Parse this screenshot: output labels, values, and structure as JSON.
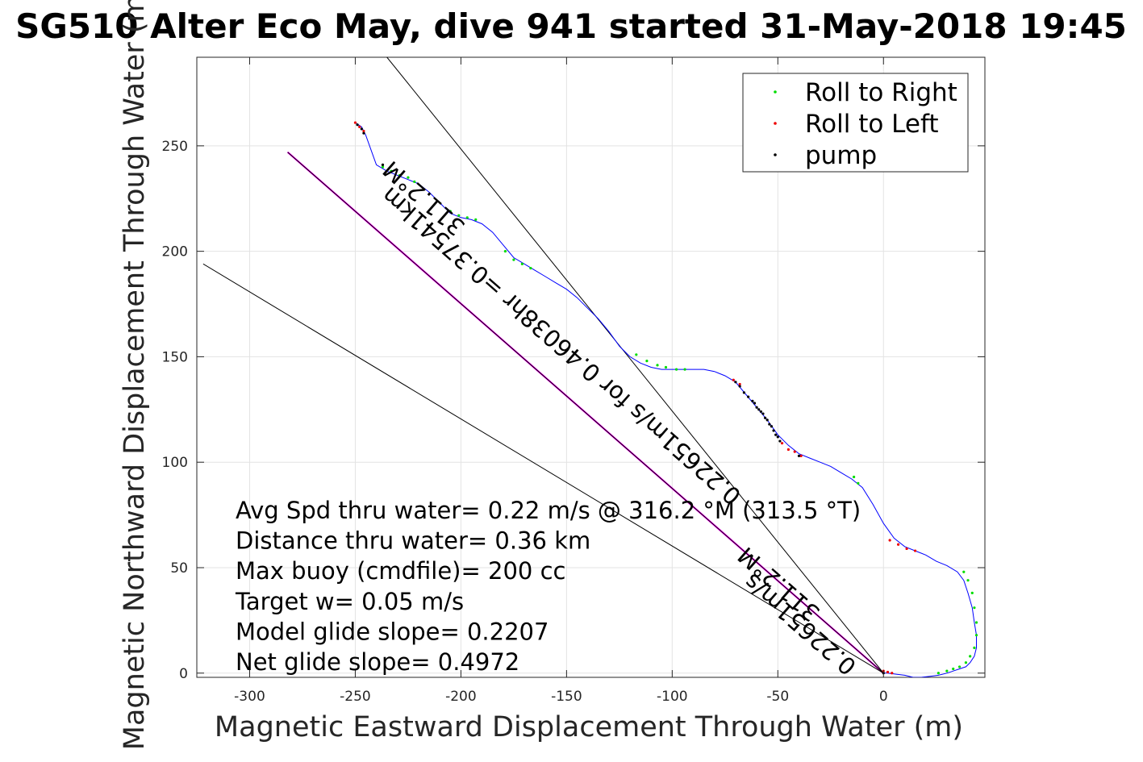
{
  "chart_data": {
    "type": "line",
    "title": "SG510 Alter Eco May, dive 941 started 31-May-2018 19:45",
    "xlabel": "Magnetic Eastward Displacement Through Water (m)",
    "ylabel": "Magnetic Northward Displacement Through Water (m)",
    "xlim": [
      -325,
      48
    ],
    "ylim": [
      -2,
      292
    ],
    "xticks": [
      -300,
      -250,
      -200,
      -150,
      -100,
      -50,
      0
    ],
    "yticks": [
      0,
      50,
      100,
      150,
      200,
      250
    ],
    "grid": true,
    "legend_position": "top-right",
    "legend": [
      {
        "label": "Roll to Right",
        "color": "#00dd00",
        "marker": "dot"
      },
      {
        "label": "Roll to Left",
        "color": "#ee0000",
        "marker": "dot"
      },
      {
        "label": "pump",
        "color": "#000000",
        "marker": "dot"
      }
    ],
    "series": [
      {
        "kind": "glider-track",
        "color": "#0000ff",
        "x": [
          -250,
          -247,
          -245,
          -240,
          -235,
          -230,
          -225,
          -220,
          -215,
          -210,
          -205,
          -200,
          -195,
          -190,
          -185,
          -180,
          -175,
          -170,
          -165,
          -160,
          -155,
          -150,
          -145,
          -140,
          -135,
          -130,
          -125,
          -120,
          -115,
          -110,
          -105,
          -100,
          -95,
          -90,
          -85,
          -80,
          -75,
          -70,
          -65,
          -60,
          -55,
          -50,
          -45,
          -40,
          -35,
          -30,
          -25,
          -20,
          -15,
          -10,
          -5,
          0,
          5,
          10,
          15,
          20,
          25,
          30,
          35,
          38,
          40,
          42,
          43,
          44,
          44,
          43,
          41,
          39,
          36,
          33,
          30,
          26,
          22,
          18,
          14,
          10,
          6,
          2,
          0
        ],
        "y": [
          261,
          259,
          255,
          241,
          238,
          236,
          234,
          232,
          228,
          223,
          218,
          216,
          215,
          213,
          209,
          203,
          197,
          194,
          191,
          188,
          185,
          182,
          178,
          173,
          168,
          162,
          155,
          150,
          147,
          145,
          144,
          144,
          144,
          144,
          144,
          143,
          141,
          138,
          132,
          126,
          120,
          113,
          108,
          104,
          102,
          100,
          98,
          95,
          92,
          88,
          80,
          71,
          64,
          60,
          58,
          56,
          53,
          51,
          48,
          44,
          38,
          31,
          24,
          18,
          12,
          8,
          5,
          3,
          2,
          1,
          0,
          -1,
          -1.5,
          -2,
          -2,
          -1,
          -0.5,
          0,
          0
        ]
      },
      {
        "kind": "heading-line",
        "color": "#ff00ff",
        "x": [
          0,
          -282
        ],
        "y": [
          0,
          247
        ]
      },
      {
        "kind": "heading-line",
        "color": "#000000",
        "x": [
          0,
          -282
        ],
        "y": [
          0,
          247
        ]
      },
      {
        "kind": "heading-line",
        "color": "#000000",
        "x": [
          0,
          -235
        ],
        "y": [
          0,
          292
        ]
      },
      {
        "kind": "heading-line",
        "color": "#000000",
        "x": [
          0,
          -322
        ],
        "y": [
          0,
          194
        ]
      }
    ],
    "markers": {
      "roll_right": {
        "color": "#00dd00",
        "x": [
          -237,
          -233,
          -229,
          -225,
          -222,
          -205,
          -201,
          -197,
          -193,
          -179,
          -175,
          -171,
          -167,
          -117,
          -112,
          -107,
          -103,
          -98,
          -94,
          -14,
          -12,
          38,
          40,
          42,
          43,
          44,
          44,
          43,
          41,
          39,
          36,
          33,
          30,
          26
        ],
        "y": [
          240,
          238,
          236,
          235,
          233,
          219,
          217,
          216,
          215,
          200,
          196,
          194,
          192,
          151,
          148,
          146,
          145,
          144,
          144,
          93,
          90,
          48,
          44,
          38,
          31,
          24,
          18,
          12,
          8,
          5,
          3,
          2,
          1,
          0
        ]
      },
      "roll_left": {
        "color": "#ee0000",
        "x": [
          -250,
          -248,
          -246,
          -71,
          -68,
          -48,
          -45,
          -42,
          -39,
          3,
          7,
          11,
          15,
          0,
          2,
          4
        ],
        "y": [
          261,
          259,
          257,
          139,
          137,
          109,
          106,
          105,
          103,
          63,
          61,
          59,
          58,
          1,
          0.5,
          0
        ]
      },
      "pump": {
        "color": "#000000",
        "x": [
          -249,
          -247,
          -246,
          -237,
          -70,
          -68,
          -66,
          -64,
          -62,
          -61,
          -60,
          -59,
          -58,
          -57,
          -56,
          -55,
          -54,
          -53,
          -52,
          -51,
          -50,
          -49,
          -40,
          0
        ],
        "y": [
          260,
          258,
          256,
          241,
          138,
          136,
          133,
          131,
          129,
          128,
          126,
          125,
          124,
          123,
          121,
          120,
          118,
          117,
          115,
          113,
          112,
          110,
          103,
          0
        ]
      }
    },
    "line_labels": [
      {
        "text": "311.2°M",
        "x": -215,
        "y": 228,
        "angle": 221.2
      },
      {
        "text": "0.22651m/s for 0.46038hr =0.37541km",
        "x": -150,
        "y": 158,
        "angle": 221.2
      },
      {
        "text": "311.2°M",
        "x": -47,
        "y": 45,
        "angle": 221.2
      },
      {
        "text": "0.22651m/s",
        "x": -37,
        "y": 26,
        "angle": 221.2
      }
    ],
    "annotations": [
      "Avg Spd thru water=  0.22 m/s @ 316.2 °M (313.5 °T)",
      "Distance thru water=  0.36 km",
      "Max buoy (cmdfile)= 200 cc",
      "Target w= 0.05 m/s",
      "Model glide slope= 0.2207",
      "Net glide slope= 0.4972"
    ]
  }
}
